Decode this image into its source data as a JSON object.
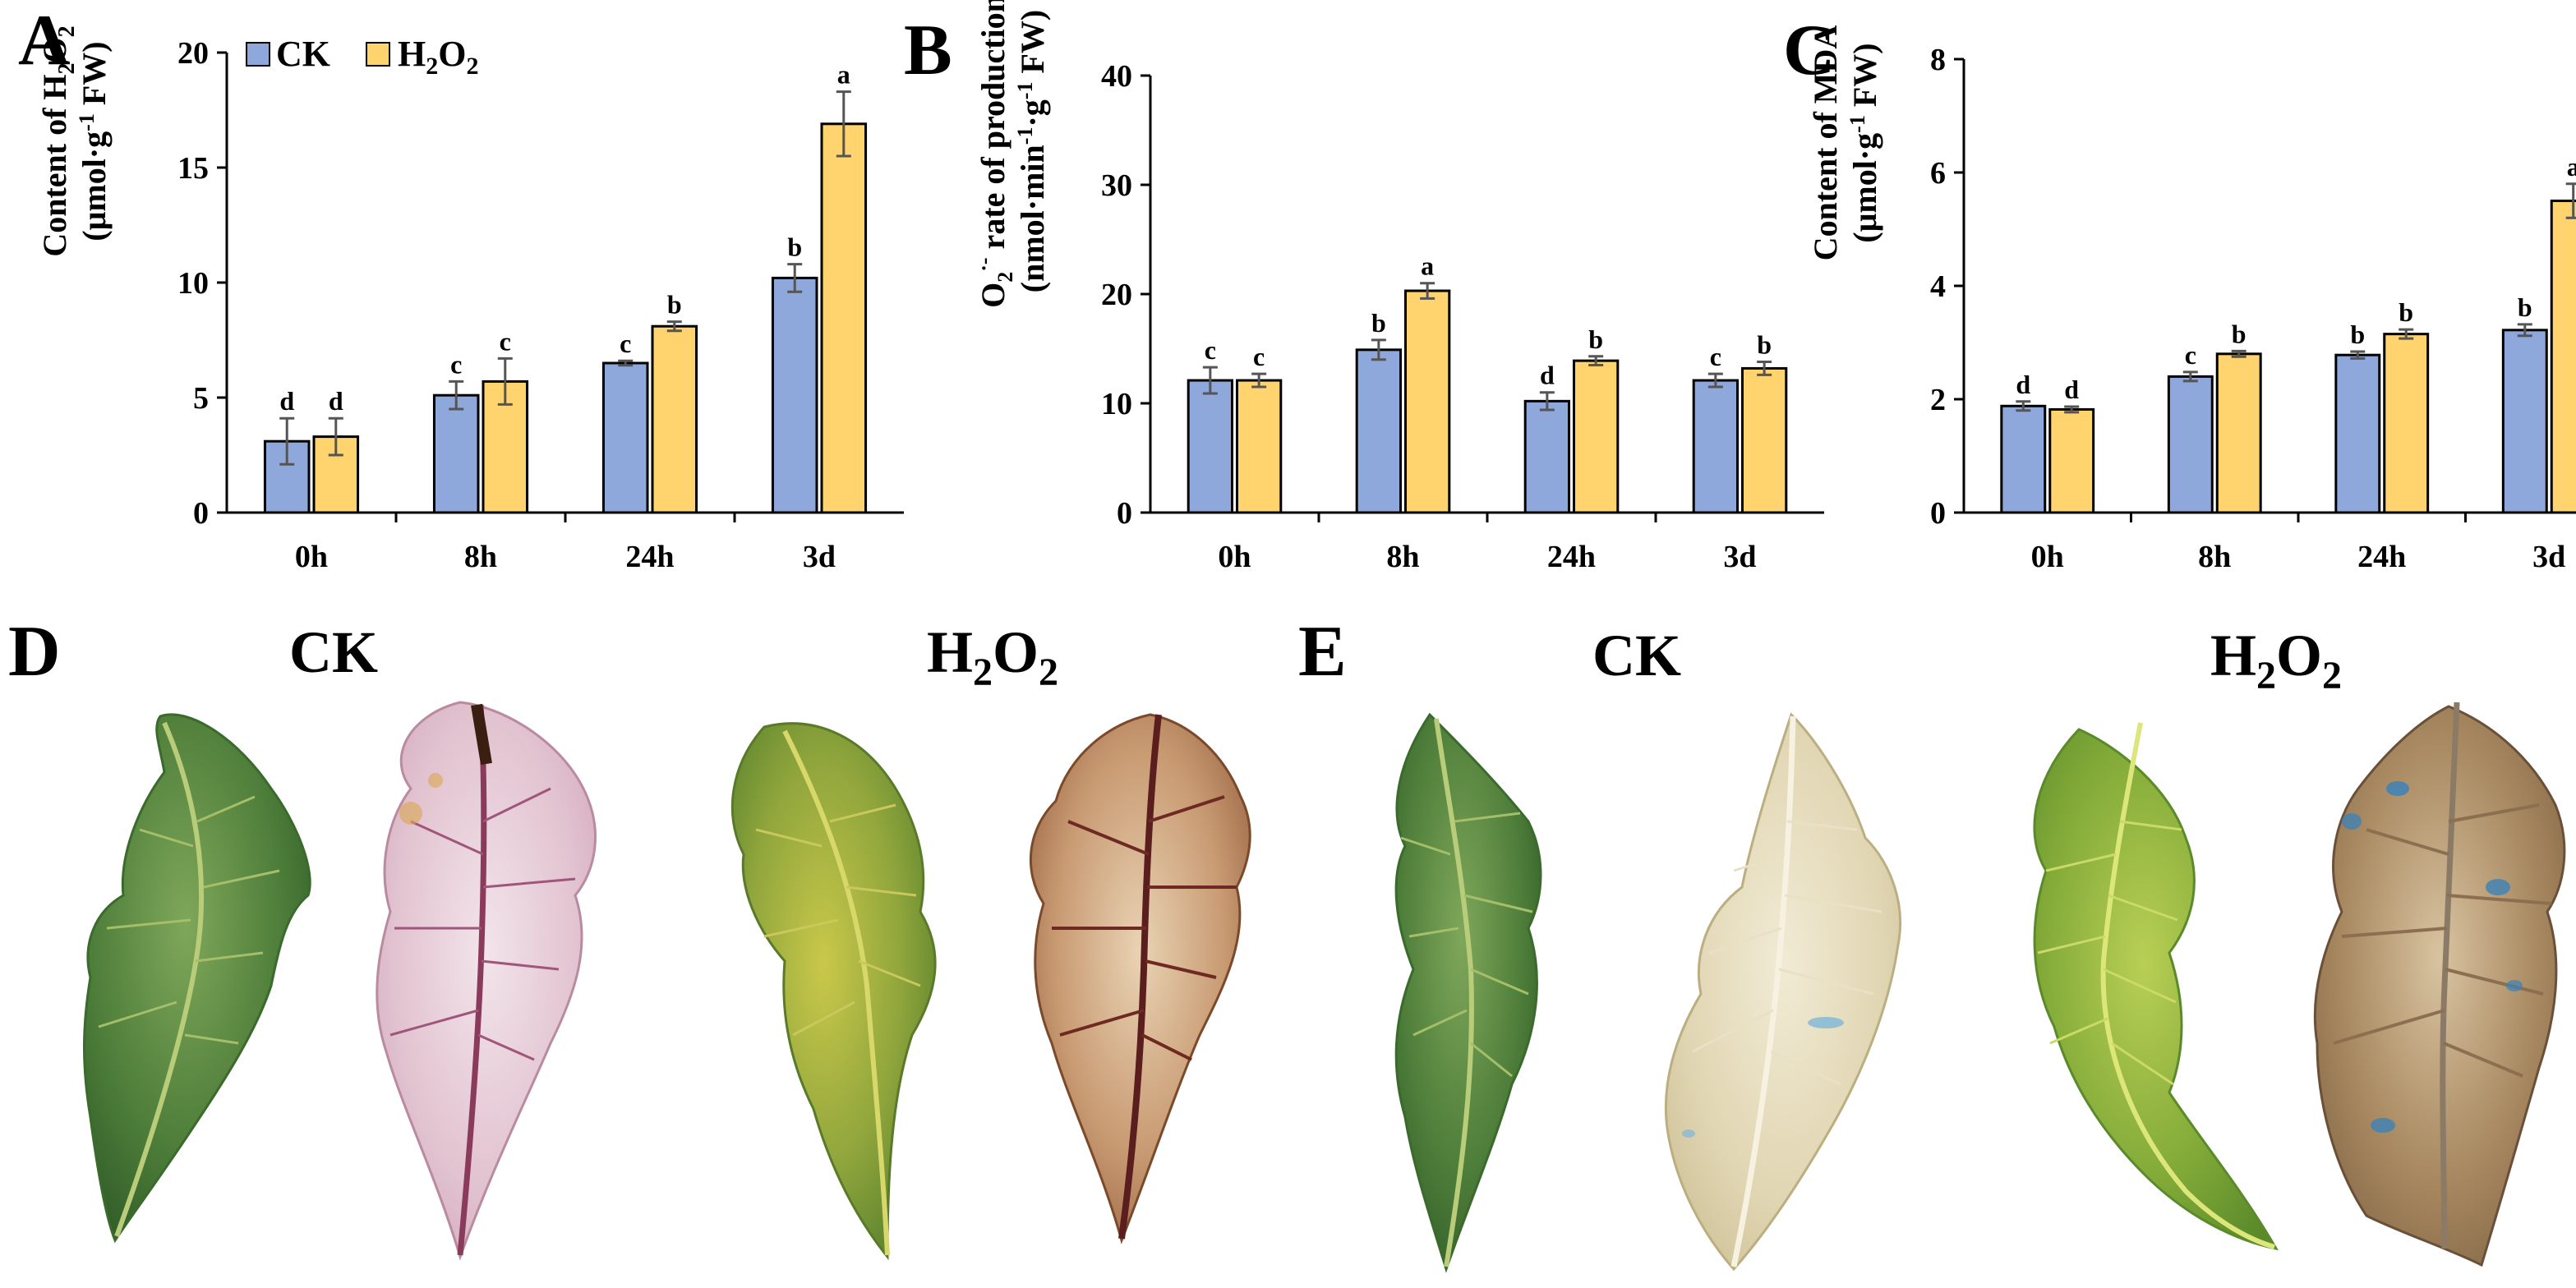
{
  "colors": {
    "ck": "#8FA8DB",
    "h2o2": "#FFD36E",
    "axis": "#000000",
    "error": "#555555"
  },
  "legend": {
    "ck": "CK",
    "h2o2_main": "H",
    "h2o2_sub1": "2",
    "h2o2_mid": "O",
    "h2o2_sub2": "2"
  },
  "chart_data": [
    {
      "id": "A",
      "type": "bar",
      "panel_label": "A",
      "categories": [
        "0h",
        "8h",
        "24h",
        "3d"
      ],
      "ylim": [
        0,
        20
      ],
      "yticks": [
        0,
        5,
        10,
        15,
        20
      ],
      "ylabel_line1_a": "Content of H",
      "ylabel_line1_sub1": "2",
      "ylabel_line1_b": "O",
      "ylabel_line1_sub2": "2",
      "ylabel_line2_a": "(μmol·g",
      "ylabel_line2_sup": "-1",
      "ylabel_line2_b": " FW)",
      "series": [
        {
          "name": "CK",
          "values": [
            3.1,
            5.1,
            6.5,
            10.2
          ],
          "errors": [
            1.0,
            0.6,
            0.1,
            0.6
          ],
          "letters": [
            "d",
            "c",
            "c",
            "b"
          ]
        },
        {
          "name": "H2O2",
          "values": [
            3.3,
            5.7,
            8.1,
            16.9
          ],
          "errors": [
            0.8,
            1.0,
            0.2,
            1.4
          ],
          "letters": [
            "d",
            "c",
            "b",
            "a"
          ]
        }
      ]
    },
    {
      "id": "B",
      "type": "bar",
      "panel_label": "B",
      "categories": [
        "0h",
        "8h",
        "24h",
        "3d"
      ],
      "ylim": [
        0,
        40
      ],
      "yticks": [
        0,
        10,
        20,
        30,
        40
      ],
      "ylabel_line1_a": "O",
      "ylabel_line1_sub": "2",
      "ylabel_line1_sup": "·-",
      "ylabel_line1_b": " rate of production",
      "ylabel_line2_a": "(nmol·min",
      "ylabel_line2_sup1": "-1",
      "ylabel_line2_b": "·g",
      "ylabel_line2_sup2": "-1",
      "ylabel_line2_c": " FW)",
      "series": [
        {
          "name": "CK",
          "values": [
            12.1,
            14.9,
            10.2,
            12.1
          ],
          "errors": [
            1.2,
            0.9,
            0.8,
            0.6
          ],
          "letters": [
            "c",
            "b",
            "d",
            "c"
          ]
        },
        {
          "name": "H2O2",
          "values": [
            12.1,
            20.3,
            13.9,
            13.2
          ],
          "errors": [
            0.6,
            0.7,
            0.4,
            0.6
          ],
          "letters": [
            "c",
            "a",
            "b",
            "b"
          ]
        }
      ]
    },
    {
      "id": "C",
      "type": "bar",
      "panel_label": "C",
      "categories": [
        "0h",
        "8h",
        "24h",
        "3d"
      ],
      "ylim": [
        0,
        8
      ],
      "yticks": [
        0,
        2,
        4,
        6,
        8
      ],
      "ylabel_line1": "Content of MDA",
      "ylabel_line2_a": "(μmol·g",
      "ylabel_line2_sup": "-1",
      "ylabel_line2_b": " FW)",
      "series": [
        {
          "name": "CK",
          "values": [
            1.88,
            2.4,
            2.78,
            3.22
          ],
          "errors": [
            0.08,
            0.08,
            0.06,
            0.1
          ],
          "letters": [
            "d",
            "c",
            "b",
            "b"
          ]
        },
        {
          "name": "H2O2",
          "values": [
            1.82,
            2.8,
            3.15,
            5.5
          ],
          "errors": [
            0.05,
            0.05,
            0.08,
            0.3
          ],
          "letters": [
            "d",
            "b",
            "b",
            "a"
          ]
        }
      ]
    }
  ],
  "photos": {
    "D": {
      "panel_label": "D",
      "ck_label": "CK",
      "h2o2_a": "H",
      "h2o2_s1": "2",
      "h2o2_b": "O",
      "h2o2_s2": "2"
    },
    "E": {
      "panel_label": "E",
      "ck_label": "CK",
      "h2o2_a": "H",
      "h2o2_s1": "2",
      "h2o2_b": "O",
      "h2o2_s2": "2"
    }
  }
}
